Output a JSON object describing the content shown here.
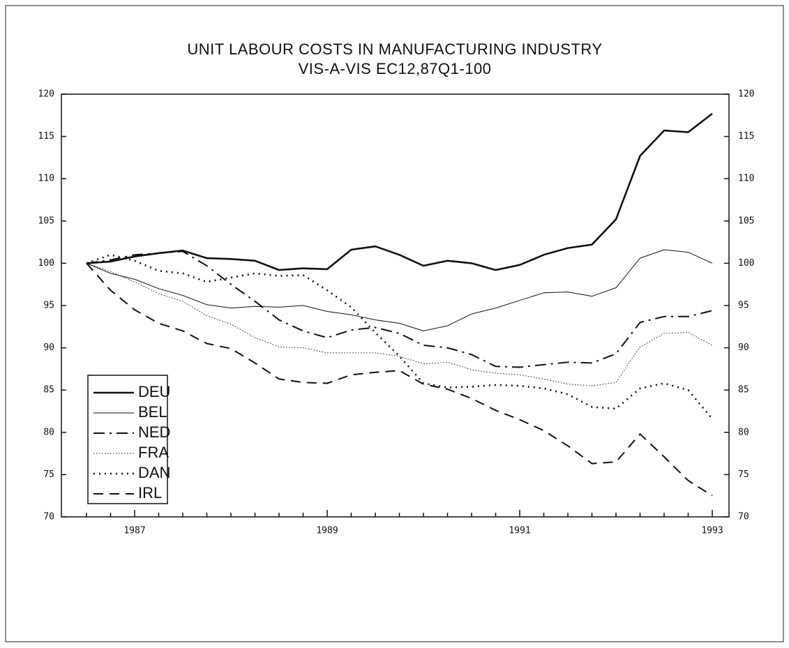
{
  "chart_data": {
    "type": "line",
    "title": "UNIT LABOUR COSTS IN MANUFACTURING INDUSTRY",
    "subtitle": "VIS-A-VIS EC12,87Q1-100",
    "categories": [
      null,
      null,
      "1987",
      null,
      null,
      null,
      null,
      null,
      null,
      null,
      "1989",
      null,
      null,
      null,
      null,
      null,
      null,
      null,
      "1991",
      null,
      null,
      null,
      null,
      null,
      null,
      null,
      "1993"
    ],
    "series": [
      {
        "name": "DEU",
        "color": "#111111",
        "values": [
          100,
          100.2,
          100.8,
          101.2,
          101.5,
          100.6,
          100.5,
          100.3,
          99.2,
          99.4,
          99.3,
          101.6,
          102,
          101,
          99.7,
          100.3,
          100,
          99.2,
          99.8,
          101,
          101.8,
          102.2,
          105.2,
          112.7,
          115.7,
          115.5,
          117.7
        ]
      },
      {
        "name": "BEL",
        "color": "#111111",
        "values": [
          100,
          98.8,
          98.1,
          97,
          96.2,
          95.1,
          94.7,
          94.9,
          94.8,
          95,
          94.3,
          93.9,
          93.3,
          92.9,
          92,
          92.6,
          94,
          94.7,
          95.6,
          96.5,
          96.6,
          96.1,
          97.1,
          100.6,
          101.6,
          101.3,
          100
        ]
      },
      {
        "name": "NED",
        "color": "#111111",
        "values": [
          100,
          100.4,
          101,
          101.2,
          101.4,
          99.7,
          97.5,
          95.5,
          93.3,
          92,
          91.2,
          92.1,
          92.4,
          91.7,
          90.3,
          90,
          89.2,
          87.8,
          87.7,
          88,
          88.3,
          88.2,
          89.3,
          93,
          93.7,
          93.7,
          94.4
        ]
      },
      {
        "name": "FRA",
        "color": "#111111",
        "values": [
          100,
          99,
          97.8,
          96.4,
          95.5,
          93.8,
          92.8,
          91.2,
          90.1,
          90,
          89.4,
          89.4,
          89.4,
          89,
          88.1,
          88.3,
          87.4,
          87,
          86.8,
          86.3,
          85.7,
          85.5,
          85.9,
          90.1,
          91.7,
          91.8,
          90.3
        ]
      },
      {
        "name": "DAN",
        "color": "#111111",
        "values": [
          100,
          101,
          100.3,
          99.1,
          98.8,
          97.8,
          98.3,
          98.8,
          98.5,
          98.6,
          96.8,
          94.8,
          91.8,
          89,
          85.8,
          85.3,
          85.4,
          85.6,
          85.5,
          85.2,
          84.5,
          83,
          82.8,
          85.2,
          85.8,
          85,
          81.6
        ]
      },
      {
        "name": "IRL",
        "color": "#111111",
        "values": [
          100,
          96.8,
          94.5,
          92.9,
          92,
          90.5,
          89.9,
          88.2,
          86.3,
          85.9,
          85.8,
          86.8,
          87.1,
          87.3,
          85.7,
          85.1,
          84,
          82.6,
          81.5,
          80.2,
          78.4,
          76.3,
          76.5,
          79.8,
          77.1,
          74.3,
          72.5
        ]
      }
    ],
    "ylim": [
      70,
      120
    ],
    "yticks": [
      70,
      75,
      80,
      85,
      90,
      95,
      100,
      105,
      110,
      115,
      120
    ],
    "y2lim": [
      70,
      120
    ],
    "y2ticks": [
      70,
      75,
      80,
      85,
      90,
      95,
      100,
      105,
      110,
      115,
      120
    ],
    "grid": false,
    "legend": "lower left"
  }
}
